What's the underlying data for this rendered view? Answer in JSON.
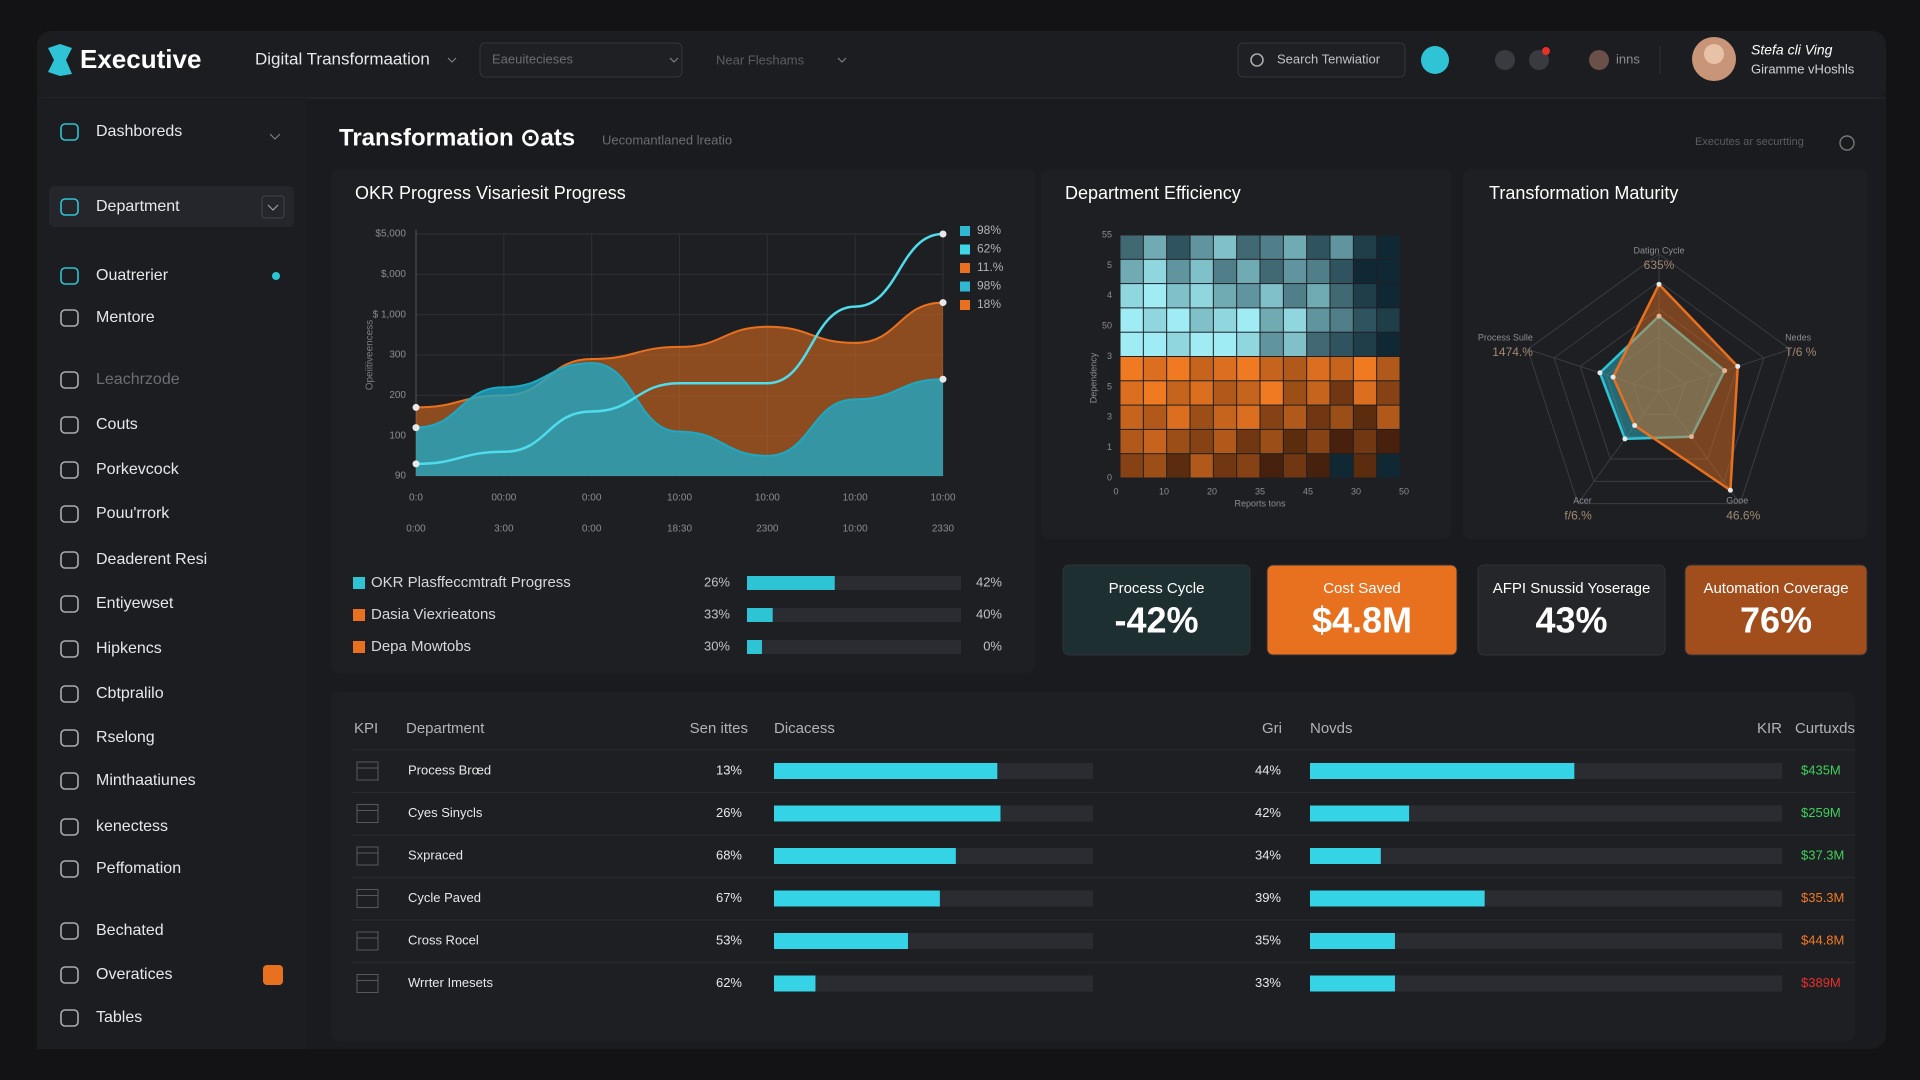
{
  "header": {
    "brand": "Executive",
    "nav": "Digital Transformaation",
    "filter_1": "Eaeuitecieses",
    "filter_2": "Near Fleshams",
    "search": "Search Tenwiatior",
    "account_link": "inns",
    "user_name": "Stefa cli Ving",
    "user_role": "Giramme vHoshls"
  },
  "sidebar": [
    {
      "label": "Dashboreds"
    },
    {
      "label": "Department",
      "active": true
    },
    {
      "label": "Ouatrerier",
      "badge": "#2fc3d6"
    },
    {
      "label": "Mentore"
    },
    {
      "label": "Leachrzode",
      "muted": true
    },
    {
      "label": "Couts"
    },
    {
      "label": "Porkevcock"
    },
    {
      "label": "Pouu'rrork"
    },
    {
      "label": "Deaderent Resi"
    },
    {
      "label": "Entiyewset"
    },
    {
      "label": "Hipkencs"
    },
    {
      "label": "Cbtpralilo"
    },
    {
      "label": "Rselong"
    },
    {
      "label": "Minthaatiunes"
    },
    {
      "label": "kenectess"
    },
    {
      "label": "Peffomation"
    },
    {
      "label": "Bechated"
    },
    {
      "label": "Overatices",
      "badge": "#e8711f"
    },
    {
      "label": "Tables"
    }
  ],
  "page": {
    "title": "Transformation ⊙ats",
    "subtitle": "Uecomantlaned lreatio",
    "status": "Executes ar securtting"
  },
  "okr_chart": {
    "type": "area",
    "title": "OKR Progress Visariesit Progress",
    "y_label": "Opeiitiveencess",
    "categories": [
      "0:0",
      "00:00",
      "0:00",
      "10:00",
      "10:00",
      "10:00",
      "10:00"
    ],
    "categories_2": [
      "0:00",
      "3:00",
      "0:00",
      "18:30",
      "2300",
      "10:00",
      "2330"
    ],
    "ylim": [
      0,
      6
    ],
    "yticks": [
      {
        "value": 0,
        "label": "90"
      },
      {
        "value": 1,
        "label": "100"
      },
      {
        "value": 2,
        "label": "200"
      },
      {
        "value": 3,
        "label": "300"
      },
      {
        "value": 4,
        "label": "$ 1,000"
      },
      {
        "value": 5,
        "label": "$,000"
      },
      {
        "value": 6,
        "label": "$5,000"
      }
    ],
    "grid": true,
    "series": [
      {
        "color": "#e8711f",
        "style": "area",
        "values": [
          1.7,
          2.0,
          2.9,
          3.2,
          3.7,
          3.3,
          4.3
        ]
      },
      {
        "color": "#1fa8c4",
        "style": "area",
        "values": [
          1.2,
          2.2,
          2.8,
          1.1,
          0.5,
          1.9,
          2.4
        ]
      },
      {
        "color": "#4fdcec",
        "style": "line",
        "values": [
          0.3,
          0.6,
          1.6,
          2.3,
          2.3,
          4.2,
          6.0
        ]
      }
    ],
    "legend_values": [
      {
        "label": "98%",
        "color": "#2fb8d0"
      },
      {
        "label": "62%",
        "color": "#3fd6e6"
      },
      {
        "label": "11.%",
        "color": "#e8711f"
      },
      {
        "label": "98%",
        "color": "#2fb8d0"
      },
      {
        "label": "18%",
        "color": "#e8711f"
      }
    ]
  },
  "okr_progress": [
    {
      "label": "OKR Plasffeccmtraft Progress",
      "color": "#2fc3d6",
      "start": "26%",
      "bar": 41,
      "end": "42%"
    },
    {
      "label": "Dasia Viexrieatons",
      "color": "#e8711f",
      "start": "33%",
      "bar": 12,
      "end": "40%"
    },
    {
      "label": "Depa Mowtobs",
      "color": "#e8711f",
      "start": "30%",
      "bar": 7,
      "end": "0%"
    }
  ],
  "efficiency_heatmap": {
    "type": "heatmap",
    "title": "Department Efficiency",
    "x_label": "Reports tons",
    "y_label": "Dependency",
    "x_labels": [
      "0",
      "10",
      "20",
      "35",
      "45",
      "30",
      "50"
    ],
    "y_labels": [
      "55",
      "5",
      "4",
      "50",
      "3",
      "5",
      "3",
      "1",
      "0"
    ],
    "vlim": [
      -9,
      9
    ],
    "values": [
      [
        3,
        6,
        2,
        5,
        7,
        3,
        4,
        6,
        2,
        5,
        1,
        0
      ],
      [
        6,
        8,
        5,
        7,
        4,
        6,
        3,
        5,
        4,
        2,
        0,
        0
      ],
      [
        8,
        9,
        7,
        8,
        6,
        5,
        7,
        4,
        6,
        3,
        1,
        0
      ],
      [
        9,
        8,
        9,
        7,
        8,
        9,
        6,
        8,
        5,
        4,
        2,
        1
      ],
      [
        9,
        9,
        8,
        9,
        9,
        8,
        5,
        7,
        3,
        2,
        1,
        0
      ],
      [
        -9,
        -8,
        -9,
        -7,
        -8,
        -9,
        -7,
        -6,
        -8,
        -7,
        -9,
        -6
      ],
      [
        -8,
        -9,
        -7,
        -8,
        -6,
        -7,
        -9,
        -5,
        -7,
        -3,
        -8,
        -4
      ],
      [
        -7,
        -6,
        -8,
        -5,
        -7,
        -8,
        -4,
        -6,
        -3,
        -5,
        -2,
        -6
      ],
      [
        -6,
        -7,
        -5,
        -4,
        -6,
        -3,
        -5,
        -2,
        -4,
        -1,
        -3,
        -1
      ],
      [
        -4,
        -5,
        -2,
        -6,
        -3,
        -4,
        -1,
        -3,
        -1,
        0,
        -2,
        0
      ]
    ]
  },
  "maturity_radar": {
    "type": "radar",
    "title": "Transformation Maturity",
    "axes": [
      {
        "label": "Datign Cycle",
        "value_label": "635%"
      },
      {
        "label": "Nedes",
        "value_label": "T/6 %"
      },
      {
        "label": "Gooe",
        "value_label": "46.6%"
      },
      {
        "label": "Acer",
        "value_label": "f/6.%"
      },
      {
        "label": "Process Sulle",
        "value_label": "1474.%"
      }
    ],
    "rlim": [
      0,
      100
    ],
    "rticks": [
      20,
      40,
      60,
      80,
      100
    ],
    "series": [
      {
        "color": "#2fc3d6",
        "values": [
          55,
          50,
          40,
          42,
          45
        ]
      },
      {
        "color": "#e8711f",
        "values": [
          78,
          60,
          88,
          30,
          35
        ]
      }
    ]
  },
  "kpi_cards": [
    {
      "label": "Process Cycle",
      "value": "-42%",
      "color": "#1e2f31"
    },
    {
      "label": "Cost Saved",
      "value": "$4.8M",
      "color": "#e8711f"
    },
    {
      "label": "AFPI Snussid Yoserage",
      "value": "43%",
      "color": "#25262a"
    },
    {
      "label": "Automation Coverage",
      "value": "76%",
      "color": "#a24e1c"
    }
  ],
  "kpi_table": {
    "columns": [
      "KPI",
      "Department",
      "Sen ittes",
      "Dicacess",
      "Gri",
      "Novds",
      "KIR",
      "Curtuxds"
    ],
    "rows": [
      {
        "department": "Process Brœd",
        "metric_1": "13%",
        "bar_1": 70,
        "metric_2": "44%",
        "bar_2": 56,
        "amount": "$435M",
        "amount_color": "#3fcf5a"
      },
      {
        "department": "Cyes Sinycls",
        "metric_1": "26%",
        "bar_1": 71,
        "metric_2": "42%",
        "bar_2": 21,
        "amount": "$259M",
        "amount_color": "#3fcf5a"
      },
      {
        "department": "Sxpraced",
        "metric_1": "68%",
        "bar_1": 57,
        "metric_2": "34%",
        "bar_2": 15,
        "amount": "$37.3M",
        "amount_color": "#3fcf5a"
      },
      {
        "department": "Cycle Paved",
        "metric_1": "67%",
        "bar_1": 52,
        "metric_2": "39%",
        "bar_2": 37,
        "amount": "$35.3M",
        "amount_color": "#f07a22"
      },
      {
        "department": "Cross Rocel",
        "metric_1": "53%",
        "bar_1": 42,
        "metric_2": "35%",
        "bar_2": 18,
        "amount": "$44.8M",
        "amount_color": "#f07a22"
      },
      {
        "department": "Wrrter Imesets",
        "metric_1": "62%",
        "bar_1": 13,
        "metric_2": "33%",
        "bar_2": 18,
        "amount": "$389M",
        "amount_color": "#e8302a"
      }
    ]
  }
}
